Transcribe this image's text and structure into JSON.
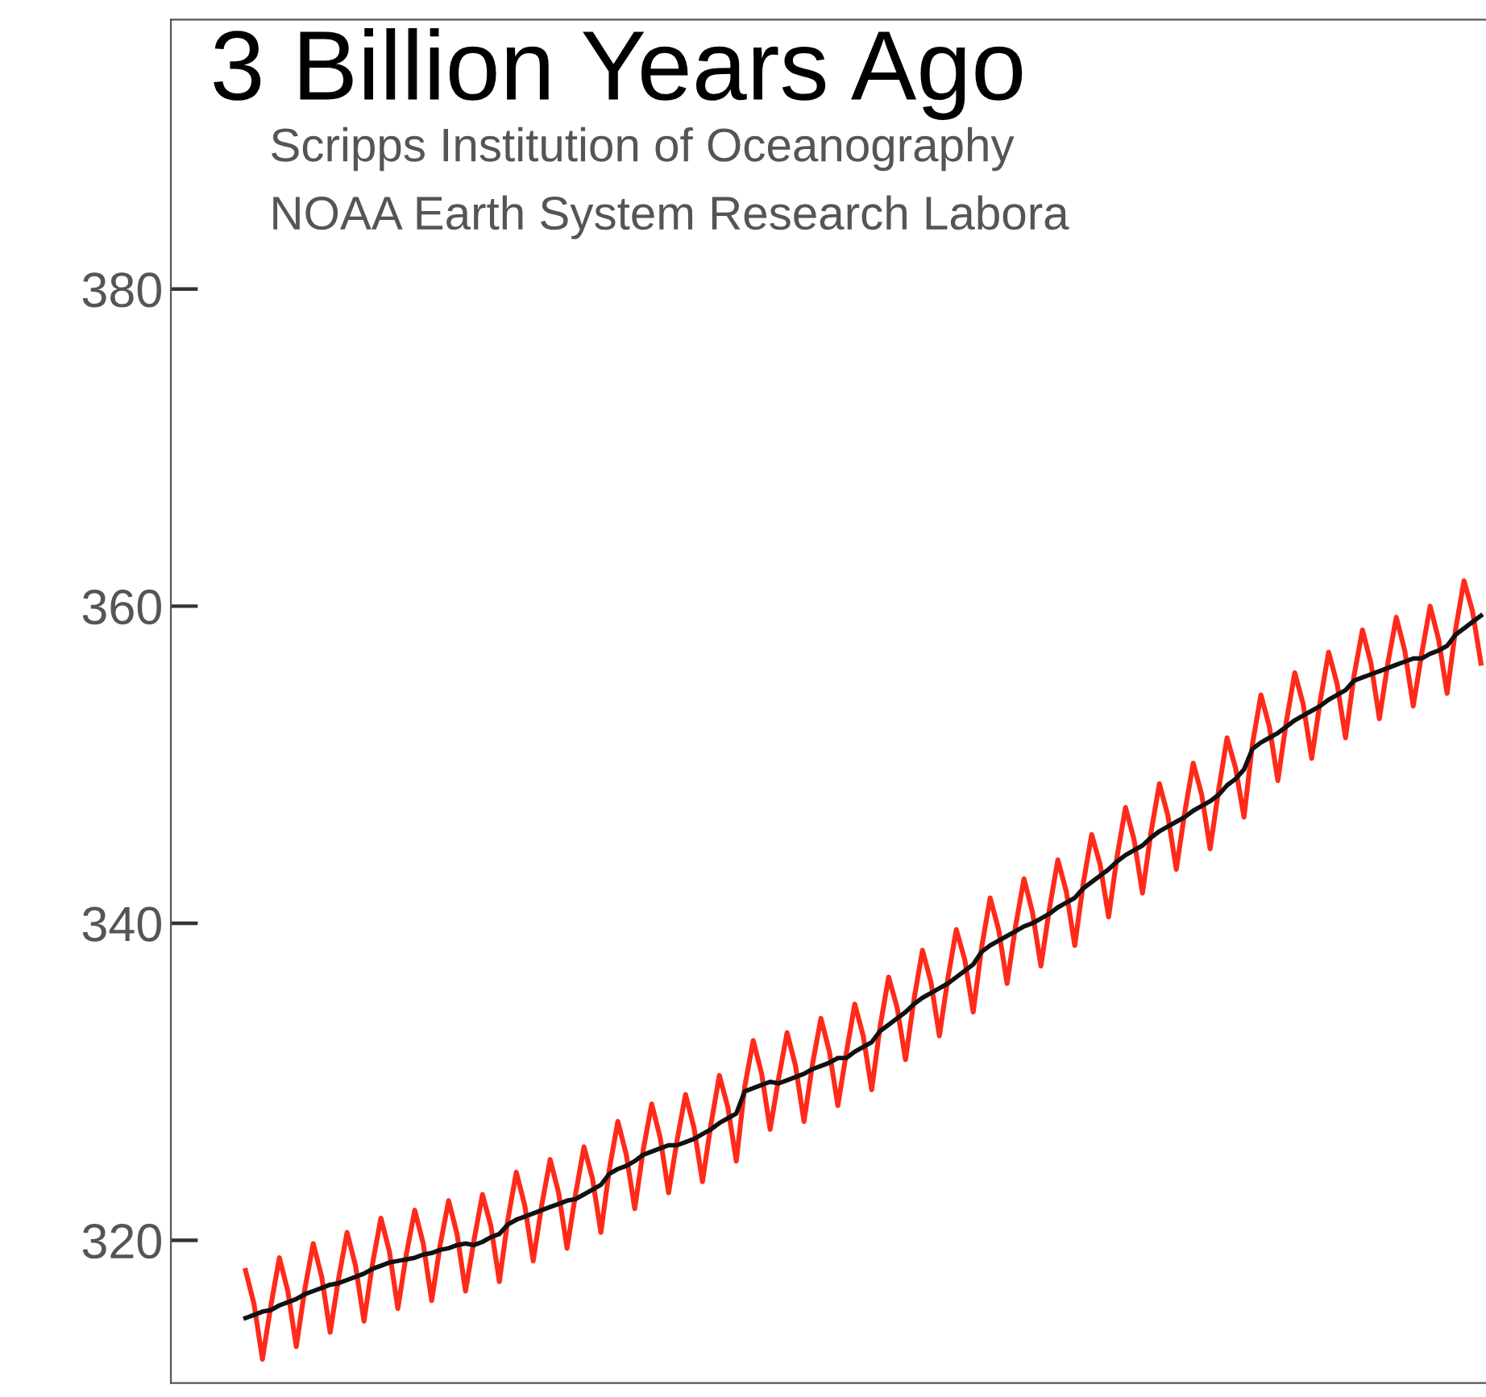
{
  "chart_data": {
    "type": "line",
    "title": "3 Billion Years Ago",
    "annotations": [
      "Scripps Institution of Oceanography",
      "NOAA Earth System Research Labora"
    ],
    "categories": [
      null,
      null,
      null,
      null,
      null,
      null,
      null,
      null,
      null,
      null,
      null,
      null,
      null,
      null,
      null,
      null,
      null,
      null,
      null,
      null,
      null,
      null,
      null,
      null,
      null,
      null,
      null,
      null,
      null,
      null,
      null,
      null,
      null,
      null,
      null,
      null,
      null,
      null,
      null,
      null,
      null,
      null,
      null,
      null,
      null,
      null,
      null,
      null,
      null,
      null,
      null,
      null,
      null,
      null,
      null,
      null,
      null,
      null,
      null,
      null,
      null,
      null,
      null,
      null,
      null,
      null,
      null,
      null,
      null,
      null,
      null,
      null,
      null,
      null,
      null,
      null,
      null,
      null,
      null,
      null,
      null,
      null,
      null,
      null,
      null,
      null,
      null,
      null,
      null,
      null,
      null,
      null,
      null,
      null,
      null,
      null,
      null,
      null,
      null,
      null,
      null,
      null,
      null,
      null,
      null,
      null,
      null,
      null,
      null,
      null,
      null,
      null,
      null,
      null,
      null,
      null,
      null,
      null,
      null,
      null,
      null,
      null,
      null,
      null,
      null,
      null,
      null,
      null,
      null,
      null,
      null,
      null,
      null,
      null,
      null,
      null,
      null,
      null,
      null,
      null,
      null,
      null,
      null,
      null,
      null,
      null,
      null
    ],
    "series": [
      {
        "color": "#ff2a1a",
        "values": [
          318.1,
          316.0,
          312.5,
          315.9,
          318.9,
          316.8,
          313.3,
          316.9,
          319.8,
          317.7,
          314.2,
          317.6,
          320.5,
          318.4,
          314.9,
          318.5,
          321.4,
          319.3,
          315.7,
          319.1,
          321.9,
          319.8,
          316.2,
          319.7,
          322.5,
          320.4,
          316.8,
          320.0,
          322.9,
          320.9,
          317.4,
          321.3,
          324.3,
          322.2,
          318.7,
          322.2,
          325.1,
          323.0,
          319.5,
          322.9,
          325.9,
          323.9,
          320.5,
          324.5,
          327.5,
          325.4,
          322.0,
          325.7,
          328.6,
          326.5,
          323.0,
          326.3,
          329.2,
          327.1,
          323.7,
          327.3,
          330.4,
          328.4,
          325.0,
          329.7,
          332.6,
          330.5,
          327.0,
          330.2,
          333.1,
          331.0,
          327.5,
          331.1,
          334.0,
          331.9,
          328.5,
          331.8,
          334.9,
          332.9,
          329.5,
          333.5,
          336.6,
          334.7,
          331.4,
          335.2,
          338.3,
          336.3,
          332.9,
          336.5,
          339.6,
          337.7,
          334.4,
          338.5,
          341.6,
          339.6,
          336.2,
          339.8,
          342.8,
          340.7,
          337.3,
          340.9,
          344.0,
          342.0,
          338.6,
          342.5,
          345.6,
          343.7,
          340.4,
          344.2,
          347.3,
          345.3,
          341.9,
          345.7,
          348.8,
          346.8,
          343.4,
          347.0,
          350.1,
          348.1,
          344.7,
          348.4,
          351.7,
          349.8,
          346.7,
          351.3,
          354.4,
          352.4,
          349.0,
          352.7,
          355.8,
          353.8,
          350.4,
          354.0,
          357.1,
          355.1,
          351.7,
          355.6,
          358.5,
          356.4,
          352.9,
          356.4,
          359.3,
          357.2,
          353.7,
          357.0,
          360.0,
          357.9,
          354.5,
          358.5,
          361.6,
          359.7,
          356.4
        ]
      },
      {
        "color": "#111111",
        "values": [
          315.1,
          315.3,
          315.5,
          315.6,
          315.9,
          316.1,
          316.3,
          316.6,
          316.8,
          317.0,
          317.2,
          317.3,
          317.5,
          317.7,
          317.9,
          318.2,
          318.4,
          318.6,
          318.7,
          318.8,
          318.9,
          319.1,
          319.2,
          319.4,
          319.5,
          319.7,
          319.8,
          319.7,
          319.9,
          320.2,
          320.4,
          321.0,
          321.3,
          321.5,
          321.7,
          321.9,
          322.1,
          322.3,
          322.5,
          322.6,
          322.9,
          323.2,
          323.5,
          324.2,
          324.5,
          324.7,
          325.0,
          325.4,
          325.6,
          325.8,
          326.0,
          326.0,
          326.2,
          326.4,
          326.7,
          327.0,
          327.4,
          327.7,
          328.0,
          329.4,
          329.6,
          329.8,
          330.0,
          329.9,
          330.1,
          330.3,
          330.5,
          330.8,
          331.0,
          331.2,
          331.5,
          331.5,
          331.9,
          332.2,
          332.5,
          333.2,
          333.6,
          334.0,
          334.4,
          334.9,
          335.3,
          335.6,
          335.9,
          336.2,
          336.6,
          337.0,
          337.4,
          338.2,
          338.6,
          338.9,
          339.2,
          339.5,
          339.8,
          340.0,
          340.3,
          340.6,
          341.0,
          341.3,
          341.6,
          342.2,
          342.6,
          343.0,
          343.4,
          343.9,
          344.3,
          344.6,
          344.9,
          345.4,
          345.8,
          346.1,
          346.4,
          346.7,
          347.1,
          347.4,
          347.7,
          348.1,
          348.7,
          349.1,
          349.7,
          351.0,
          351.4,
          351.7,
          352.0,
          352.4,
          352.8,
          353.1,
          353.4,
          353.7,
          354.1,
          354.4,
          354.7,
          355.3,
          355.5,
          355.7,
          355.9,
          356.1,
          356.3,
          356.5,
          356.7,
          356.7,
          357.0,
          357.2,
          357.5,
          358.2,
          358.6,
          359.0,
          359.4
        ]
      }
    ],
    "ylim": [
      311,
      397
    ],
    "yticks": [
      320,
      340,
      360,
      380
    ],
    "marker": "none",
    "line_style": "solid",
    "grid": false,
    "legend": false
  }
}
